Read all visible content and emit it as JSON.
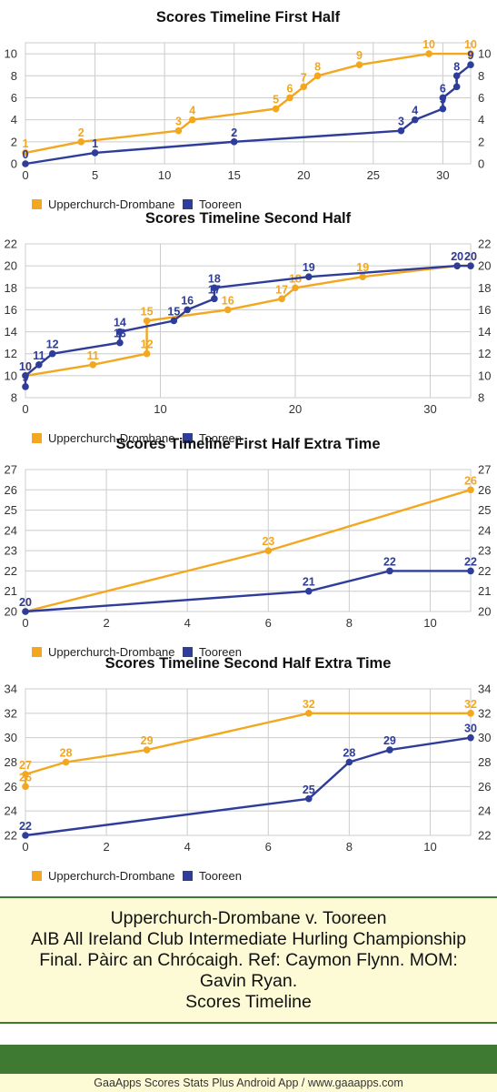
{
  "colors": {
    "upperchurch": "#f2a71e",
    "tooreen": "#2e3d99",
    "grid": "#cccccc",
    "axis_text": "#333333"
  },
  "chart_data": [
    {
      "type": "line",
      "title": "Scores Timeline First Half",
      "xlim": [
        0,
        32
      ],
      "ylim": [
        0,
        11
      ],
      "xticks": [
        0,
        5,
        10,
        15,
        20,
        25,
        30
      ],
      "yticks": [
        0,
        2,
        4,
        6,
        8,
        10
      ],
      "legend": "bottom",
      "series": [
        {
          "name": "Upperchurch-Drombane",
          "color": "#f2a71e",
          "x": [
            0,
            4,
            11,
            12,
            18,
            19,
            20,
            21,
            24,
            29,
            32
          ],
          "y": [
            1,
            2,
            3,
            4,
            5,
            6,
            7,
            8,
            9,
            10,
            10
          ],
          "labels": [
            "1",
            "2",
            "3",
            "4",
            "5",
            "6",
            "7",
            "8",
            "9",
            "10",
            "10"
          ]
        },
        {
          "name": "Tooreen",
          "color": "#2e3d99",
          "x": [
            0,
            5,
            15,
            27,
            28,
            30,
            30,
            31,
            31,
            32
          ],
          "y": [
            0,
            1,
            2,
            3,
            4,
            5,
            6,
            7,
            8,
            9
          ],
          "labels": [
            "0",
            "1",
            "2",
            "3",
            "4",
            "5",
            "6",
            "7",
            "8",
            "9"
          ]
        }
      ]
    },
    {
      "type": "line",
      "title": "Scores Timeline Second Half",
      "xlim": [
        0,
        33
      ],
      "ylim": [
        8,
        22
      ],
      "xticks": [
        0,
        10,
        20,
        30
      ],
      "yticks": [
        8,
        10,
        12,
        14,
        16,
        18,
        20,
        22
      ],
      "legend": "bottom",
      "series": [
        {
          "name": "Upperchurch-Drombane",
          "color": "#f2a71e",
          "x": [
            0,
            5,
            9,
            9,
            15,
            19,
            20,
            25,
            32,
            33
          ],
          "y": [
            10,
            11,
            12,
            15,
            16,
            17,
            18,
            19,
            20,
            20
          ],
          "labels": [
            "10",
            "11",
            "12",
            "15",
            "16",
            "17",
            "18",
            "19",
            "20",
            "20"
          ]
        },
        {
          "name": "Tooreen",
          "color": "#2e3d99",
          "x": [
            0,
            0,
            1,
            2,
            7,
            7,
            11,
            12,
            14,
            14,
            21,
            32,
            33
          ],
          "y": [
            9,
            10,
            11,
            12,
            13,
            14,
            15,
            16,
            17,
            18,
            19,
            20,
            20
          ],
          "labels": [
            "9",
            "10",
            "11",
            "12",
            "13",
            "14",
            "15",
            "16",
            "17",
            "18",
            "19",
            "20",
            "20"
          ]
        }
      ]
    },
    {
      "type": "line",
      "title": "Scores Timeline First Half Extra Time",
      "xlim": [
        0,
        11
      ],
      "ylim": [
        20,
        27
      ],
      "xticks": [
        0,
        2,
        4,
        6,
        8,
        10
      ],
      "yticks": [
        20,
        21,
        22,
        23,
        24,
        25,
        26,
        27
      ],
      "legend": "bottom",
      "series": [
        {
          "name": "Upperchurch-Drombane",
          "color": "#f2a71e",
          "x": [
            0,
            6,
            11
          ],
          "y": [
            20,
            23,
            26
          ],
          "labels": [
            "20",
            "23",
            "26"
          ]
        },
        {
          "name": "Tooreen",
          "color": "#2e3d99",
          "x": [
            0,
            7,
            9,
            11
          ],
          "y": [
            20,
            21,
            22,
            22
          ],
          "labels": [
            "20",
            "21",
            "22",
            "22"
          ]
        }
      ]
    },
    {
      "type": "line",
      "title": "Scores Timeline Second Half Extra Time",
      "xlim": [
        0,
        11
      ],
      "ylim": [
        22,
        34
      ],
      "xticks": [
        0,
        2,
        4,
        6,
        8,
        10
      ],
      "yticks": [
        22,
        24,
        26,
        28,
        30,
        32,
        34
      ],
      "legend": "bottom",
      "series": [
        {
          "name": "Upperchurch-Drombane",
          "color": "#f2a71e",
          "x": [
            0,
            0,
            1,
            3,
            7,
            11
          ],
          "y": [
            26,
            27,
            28,
            29,
            32,
            32
          ],
          "labels": [
            "26",
            "27",
            "28",
            "29",
            "32",
            "32"
          ]
        },
        {
          "name": "Tooreen",
          "color": "#2e3d99",
          "x": [
            0,
            7,
            8,
            9,
            11
          ],
          "y": [
            22,
            25,
            28,
            29,
            30
          ],
          "labels": [
            "22",
            "25",
            "28",
            "29",
            "30"
          ]
        }
      ]
    }
  ],
  "info": {
    "lines": [
      "Upperchurch-Drombane v. Tooreen",
      "AIB All Ireland Club Intermediate Hurling Championship",
      "Final. Pàirc an Chrócaigh. Ref: Caymon Flynn. MOM:",
      "Gavin Ryan.",
      "Scores Timeline"
    ]
  },
  "footer": {
    "text": "GaaApps Scores Stats Plus Android App / www.gaaapps.com"
  }
}
